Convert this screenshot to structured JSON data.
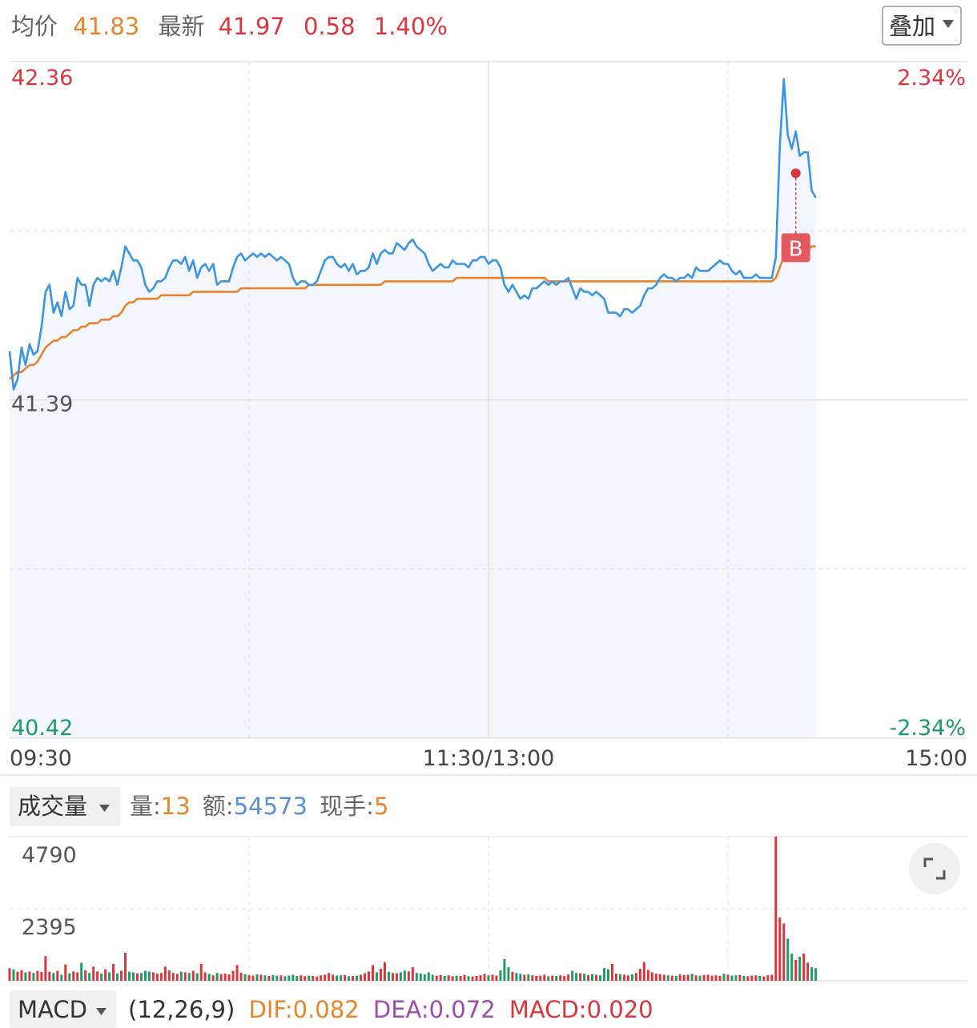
{
  "header": {
    "avg": 41.83,
    "last": 41.97,
    "change": 0.58,
    "change_pct": "1.40%",
    "overlay_button": "叠加"
  },
  "chart_data": [
    {
      "type": "line",
      "xlim": [
        0,
        240
      ],
      "xticks": [
        {
          "value": 0,
          "label": "09:30"
        },
        {
          "value": 120,
          "label": "11:30/13:00"
        },
        {
          "value": 240,
          "label": "15:00"
        }
      ],
      "ylim": [
        40.42,
        42.36
      ],
      "yticks": [
        40.42,
        41.39,
        42.36
      ],
      "y2lim": [
        -2.34,
        2.34
      ],
      "y2ticks": [
        {
          "value": -2.34,
          "label": "-2.34%"
        },
        {
          "value": 2.34,
          "label": "2.34%"
        }
      ],
      "grid": true,
      "area_fill": "#f3f7fd",
      "up_color": "#d9363e",
      "down_color": "#1f9a6a",
      "series": [
        {
          "name": "最新",
          "color": "#3b95e0",
          "values": [
            41.53,
            41.42,
            41.45,
            41.54,
            41.49,
            41.55,
            41.52,
            41.53,
            41.6,
            41.7,
            41.72,
            41.64,
            41.67,
            41.63,
            41.7,
            41.65,
            41.66,
            41.74,
            41.72,
            41.72,
            41.66,
            41.72,
            41.74,
            41.73,
            41.74,
            41.73,
            41.76,
            41.72,
            41.77,
            41.83,
            41.81,
            41.79,
            41.79,
            41.77,
            41.72,
            41.7,
            41.71,
            41.73,
            41.73,
            41.74,
            41.77,
            41.79,
            41.79,
            41.78,
            41.8,
            41.76,
            41.79,
            41.74,
            41.77,
            41.78,
            41.76,
            41.78,
            41.72,
            41.73,
            41.73,
            41.73,
            41.77,
            41.8,
            41.81,
            41.79,
            41.8,
            41.81,
            41.8,
            41.81,
            41.8,
            41.81,
            41.8,
            41.79,
            41.8,
            41.79,
            41.78,
            41.74,
            41.72,
            41.73,
            41.73,
            41.72,
            41.72,
            41.73,
            41.76,
            41.79,
            41.8,
            41.8,
            41.78,
            41.77,
            41.78,
            41.76,
            41.78,
            41.75,
            41.76,
            41.76,
            41.77,
            41.81,
            41.78,
            41.81,
            41.82,
            41.81,
            41.81,
            41.84,
            41.83,
            41.82,
            41.84,
            41.85,
            41.83,
            41.82,
            41.81,
            41.78,
            41.76,
            41.77,
            41.78,
            41.77,
            41.77,
            41.79,
            41.78,
            41.78,
            41.78,
            41.77,
            41.79,
            41.79,
            41.8,
            41.8,
            41.78,
            41.79,
            41.79,
            41.77,
            41.72,
            41.7,
            41.72,
            41.7,
            41.68,
            41.69,
            41.68,
            41.71,
            41.71,
            41.72,
            41.73,
            41.72,
            41.73,
            41.72,
            41.73,
            41.73,
            41.74,
            41.71,
            41.68,
            41.71,
            41.7,
            41.7,
            41.69,
            41.7,
            41.69,
            41.68,
            41.64,
            41.64,
            41.64,
            41.63,
            41.65,
            41.65,
            41.64,
            41.65,
            41.66,
            41.69,
            41.71,
            41.71,
            41.72,
            41.74,
            41.75,
            41.74,
            41.74,
            41.73,
            41.74,
            41.74,
            41.75,
            41.74,
            41.77,
            41.76,
            41.76,
            41.76,
            41.77,
            41.78,
            41.79,
            41.78,
            41.78,
            41.76,
            41.75,
            41.76,
            41.74,
            41.74,
            41.74,
            41.75,
            41.74,
            41.74,
            41.74,
            41.74,
            41.8,
            42.12,
            42.31,
            42.15,
            42.11,
            42.16,
            42.09,
            42.1,
            42.1,
            41.99,
            41.97
          ]
        },
        {
          "name": "均价",
          "color": "#e8842c",
          "values": [
            41.45,
            41.46,
            41.47,
            41.47,
            41.48,
            41.49,
            41.49,
            41.5,
            41.52,
            41.54,
            41.55,
            41.56,
            41.56,
            41.57,
            41.57,
            41.58,
            41.59,
            41.59,
            41.6,
            41.6,
            41.61,
            41.61,
            41.61,
            41.62,
            41.62,
            41.62,
            41.63,
            41.63,
            41.64,
            41.66,
            41.67,
            41.67,
            41.68,
            41.68,
            41.68,
            41.68,
            41.68,
            41.68,
            41.69,
            41.69,
            41.69,
            41.69,
            41.69,
            41.69,
            41.69,
            41.69,
            41.7,
            41.7,
            41.7,
            41.7,
            41.7,
            41.7,
            41.7,
            41.7,
            41.7,
            41.7,
            41.7,
            41.7,
            41.71,
            41.71,
            41.71,
            41.71,
            41.71,
            41.71,
            41.71,
            41.71,
            41.71,
            41.71,
            41.71,
            41.71,
            41.71,
            41.71,
            41.71,
            41.71,
            41.71,
            41.72,
            41.72,
            41.72,
            41.72,
            41.72,
            41.72,
            41.72,
            41.72,
            41.72,
            41.72,
            41.72,
            41.72,
            41.72,
            41.72,
            41.72,
            41.72,
            41.72,
            41.72,
            41.72,
            41.73,
            41.73,
            41.73,
            41.73,
            41.73,
            41.73,
            41.73,
            41.73,
            41.73,
            41.73,
            41.73,
            41.73,
            41.73,
            41.73,
            41.73,
            41.73,
            41.73,
            41.73,
            41.74,
            41.74,
            41.74,
            41.74,
            41.74,
            41.74,
            41.74,
            41.74,
            41.74,
            41.74,
            41.74,
            41.74,
            41.74,
            41.74,
            41.74,
            41.74,
            41.74,
            41.74,
            41.74,
            41.74,
            41.74,
            41.74,
            41.74,
            41.73,
            41.73,
            41.73,
            41.73,
            41.73,
            41.73,
            41.73,
            41.73,
            41.73,
            41.73,
            41.73,
            41.73,
            41.73,
            41.73,
            41.73,
            41.73,
            41.73,
            41.73,
            41.73,
            41.73,
            41.73,
            41.73,
            41.73,
            41.73,
            41.73,
            41.73,
            41.73,
            41.73,
            41.73,
            41.73,
            41.73,
            41.73,
            41.73,
            41.73,
            41.73,
            41.73,
            41.73,
            41.73,
            41.73,
            41.73,
            41.73,
            41.73,
            41.73,
            41.73,
            41.73,
            41.73,
            41.73,
            41.73,
            41.73,
            41.73,
            41.73,
            41.73,
            41.73,
            41.73,
            41.73,
            41.73,
            41.73,
            41.74,
            41.77,
            41.8,
            41.81,
            41.81,
            41.82,
            41.82,
            41.82,
            41.82,
            41.83,
            41.83
          ]
        }
      ],
      "annotations": [
        {
          "label": "B",
          "x": 197,
          "value": 42.04
        }
      ]
    },
    {
      "type": "bar",
      "title": "成交量",
      "stats": [
        {
          "label": "量:",
          "value": 13
        },
        {
          "label": "额:",
          "value": 54573
        },
        {
          "label": "现手:",
          "value": 5
        }
      ],
      "xlim": [
        0,
        240
      ],
      "ylim": [
        0,
        4790
      ],
      "yticks": [
        2395,
        4790
      ],
      "grid": true,
      "up_color": "#d9363e",
      "down_color": "#1f9a6a",
      "values": [
        420,
        380,
        300,
        350,
        280,
        310,
        260,
        330,
        290,
        820,
        300,
        260,
        330,
        200,
        540,
        250,
        310,
        280,
        600,
        350,
        260,
        470,
        310,
        240,
        380,
        280,
        560,
        240,
        330,
        930,
        300,
        280,
        250,
        260,
        330,
        310,
        280,
        240,
        260,
        470,
        350,
        260,
        230,
        300,
        280,
        260,
        330,
        250,
        560,
        280,
        230,
        180,
        260,
        220,
        240,
        210,
        330,
        520,
        270,
        220,
        190,
        170,
        210,
        200,
        180,
        160,
        190,
        170,
        180,
        150,
        170,
        200,
        160,
        180,
        150,
        170,
        160,
        140,
        180,
        200,
        260,
        200,
        170,
        180,
        190,
        150,
        160,
        170,
        200,
        250,
        310,
        520,
        280,
        400,
        620,
        300,
        260,
        250,
        280,
        340,
        310,
        450,
        260,
        240,
        210,
        280,
        200,
        170,
        190,
        160,
        180,
        150,
        170,
        160,
        190,
        150,
        140,
        160,
        180,
        230,
        180,
        200,
        170,
        350,
        720,
        450,
        300,
        260,
        230,
        200,
        210,
        180,
        160,
        170,
        200,
        150,
        170,
        160,
        180,
        160,
        210,
        330,
        260,
        250,
        240,
        190,
        220,
        200,
        180,
        420,
        380,
        560,
        240,
        220,
        200,
        180,
        210,
        260,
        400,
        620,
        360,
        280,
        240,
        220,
        200,
        180,
        170,
        160,
        210,
        190,
        200,
        230,
        180,
        170,
        190,
        200,
        170,
        180,
        160,
        230,
        200,
        170,
        180,
        190,
        160,
        150,
        170,
        180,
        160,
        140,
        180,
        200,
        4790,
        2100,
        1900,
        1400,
        900,
        700,
        800,
        900,
        600,
        450,
        420
      ]
    }
  ],
  "indicator": {
    "name": "MACD",
    "params": "(12,26,9)",
    "dif": "DIF:0.082",
    "dea": "DEA:0.072",
    "macd": "MACD:0.020"
  }
}
